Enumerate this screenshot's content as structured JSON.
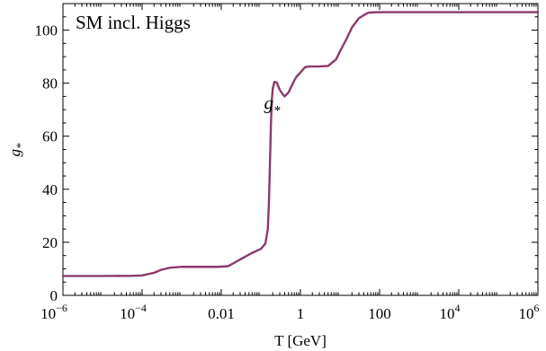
{
  "chart_data": {
    "type": "line",
    "title": "SM incl. Higgs",
    "xlabel": "T [GeV]",
    "ylabel": "g*",
    "xscale": "log",
    "xlim": [
      1e-06,
      1000000
    ],
    "ylim": [
      0,
      110
    ],
    "grid": false,
    "x_ticks": [
      {
        "value": 1e-06,
        "base": "10",
        "exp": "−6"
      },
      {
        "value": 0.0001,
        "base": "10",
        "exp": "−4"
      },
      {
        "value": 0.01,
        "base": "0.01",
        "exp": ""
      },
      {
        "value": 1,
        "base": "1",
        "exp": ""
      },
      {
        "value": 100,
        "base": "100",
        "exp": ""
      },
      {
        "value": 10000,
        "base": "10",
        "exp": "4"
      },
      {
        "value": 1000000,
        "base": "10",
        "exp": "6"
      }
    ],
    "y_ticks": [
      0,
      20,
      40,
      60,
      80,
      100
    ],
    "annotation": {
      "text": "g",
      "subscript": "*",
      "x": 0.12,
      "y": 77
    },
    "series": [
      {
        "color": "#8b3a6b",
        "x": [
          1e-06,
          1e-05,
          5e-05,
          0.0001,
          0.0002,
          0.0003,
          0.0005,
          0.001,
          0.003,
          0.008,
          0.015,
          0.03,
          0.06,
          0.1,
          0.13,
          0.15,
          0.16,
          0.17,
          0.18,
          0.19,
          0.2,
          0.22,
          0.25,
          0.3,
          0.35,
          0.4,
          0.5,
          0.6,
          0.7,
          0.8,
          1.0,
          1.3,
          1.6,
          2,
          3,
          5,
          8,
          10,
          15,
          20,
          30,
          50,
          70,
          100,
          200,
          1000,
          10000,
          100000,
          1000000
        ],
        "y": [
          7.3,
          7.3,
          7.35,
          7.5,
          8.5,
          9.6,
          10.4,
          10.75,
          10.75,
          10.75,
          11,
          13.5,
          16,
          17.5,
          19.5,
          25,
          35,
          50,
          65,
          74,
          78,
          80.5,
          80.3,
          77.5,
          76,
          75,
          76.5,
          79,
          81,
          82.5,
          84,
          86,
          86.3,
          86.3,
          86.3,
          86.5,
          89,
          92,
          97,
          101,
          104.5,
          106.5,
          106.7,
          106.75,
          106.75,
          106.75,
          106.75,
          106.75,
          106.75
        ]
      }
    ]
  }
}
